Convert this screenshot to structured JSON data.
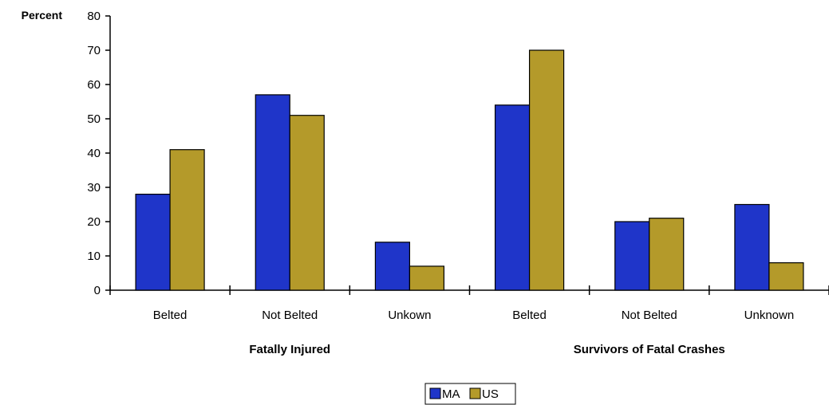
{
  "chart_data": {
    "type": "bar",
    "ylabel": "Percent",
    "ylim": [
      0,
      80
    ],
    "yticks": [
      0,
      10,
      20,
      30,
      40,
      50,
      60,
      70,
      80
    ],
    "groups": [
      {
        "label": "Fatally Injured",
        "categories": [
          "Belted",
          "Not Belted",
          "Unkown"
        ]
      },
      {
        "label": "Survivors of Fatal Crashes",
        "categories": [
          "Belted",
          "Not Belted",
          "Unknown"
        ]
      }
    ],
    "categories": [
      "Belted",
      "Not Belted",
      "Unkown",
      "Belted",
      "Not Belted",
      "Unknown"
    ],
    "series": [
      {
        "name": "MA",
        "color": "#1f35c9",
        "values": [
          28,
          57,
          14,
          54,
          20,
          25
        ]
      },
      {
        "name": "US",
        "color": "#b49a2a",
        "values": [
          41,
          51,
          7,
          70,
          21,
          8
        ]
      }
    ],
    "legend_position": "bottom-center",
    "grid": false
  }
}
